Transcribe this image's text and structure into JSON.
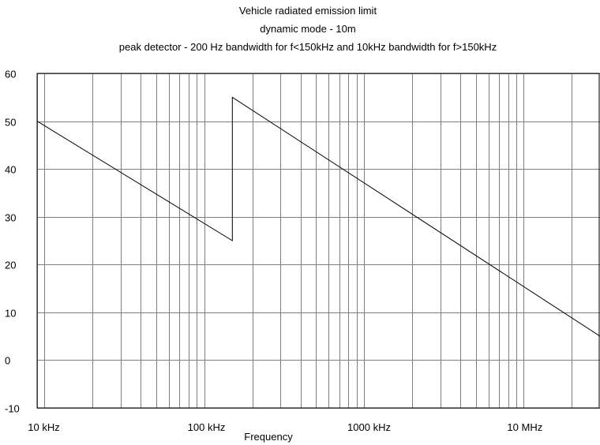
{
  "chart_data": {
    "type": "line",
    "title": [
      "Vehicle radiated emission limit",
      "dynamic mode - 10m",
      "peak detector -  200 Hz bandwidth for f<150kHz and 10kHz bandwidth for f>150kHz"
    ],
    "xlabel": "Frequency",
    "ylabel": "",
    "x_scale": "log",
    "x_unit": "kHz",
    "xlim": [
      9,
      30000
    ],
    "ylim": [
      -10,
      60
    ],
    "grid": true,
    "x_ticks": [
      {
        "value": 10,
        "label": "10 kHz"
      },
      {
        "value": 100,
        "label": "100 kHz"
      },
      {
        "value": 1000,
        "label": "1000 kHz"
      },
      {
        "value": 10000,
        "label": "10 MHz"
      }
    ],
    "y_ticks": [
      {
        "value": -10,
        "label": "-10"
      },
      {
        "value": 0,
        "label": "0"
      },
      {
        "value": 10,
        "label": "10"
      },
      {
        "value": 20,
        "label": "20"
      },
      {
        "value": 30,
        "label": "30"
      },
      {
        "value": 40,
        "label": "40"
      },
      {
        "value": 50,
        "label": "50"
      },
      {
        "value": 60,
        "label": "60"
      }
    ],
    "series": [
      {
        "x": [
          9,
          150,
          150,
          30000
        ],
        "y": [
          50,
          25,
          55,
          5
        ]
      }
    ]
  }
}
